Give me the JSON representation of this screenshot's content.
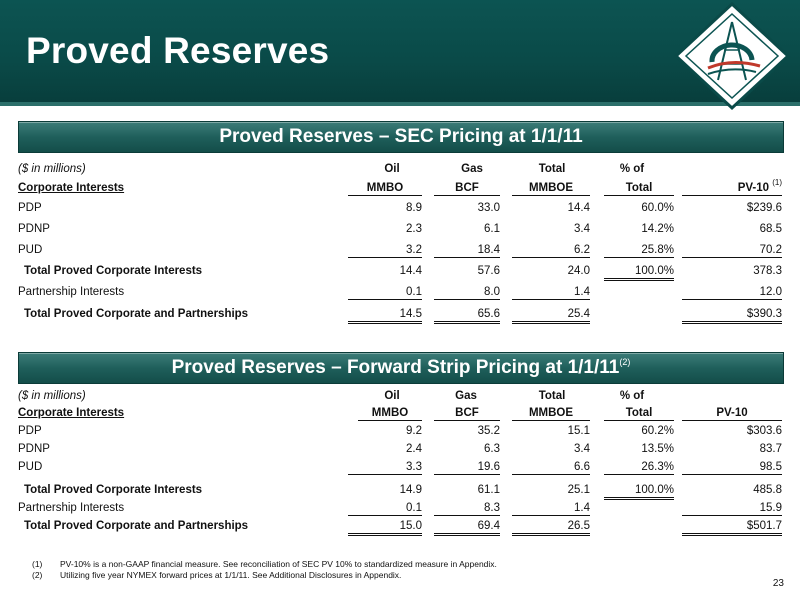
{
  "title": "Proved Reserves",
  "section1": {
    "title": "Proved Reserves – SEC Pricing at 1/1/11",
    "unit_label": "($ in millions)",
    "header_top": [
      "Oil",
      "Gas",
      "Total",
      "% of"
    ],
    "header_label": "Corporate Interests",
    "header_bottom": [
      "MMBO",
      "BCF",
      "MMBOE",
      "Total",
      "PV-10"
    ],
    "pv10_note": "(1)",
    "rows": [
      {
        "label": "PDP",
        "values": [
          "8.9",
          "33.0",
          "14.4",
          "60.0%",
          "$239.6"
        ]
      },
      {
        "label": "PDNP",
        "values": [
          "2.3",
          "6.1",
          "3.4",
          "14.2%",
          "68.5"
        ]
      },
      {
        "label": "PUD",
        "values": [
          "3.2",
          "18.4",
          "6.2",
          "25.8%",
          "70.2"
        ]
      },
      {
        "label": "Total Proved Corporate Interests",
        "values": [
          "14.4",
          "57.6",
          "24.0",
          "100.0%",
          "378.3"
        ]
      },
      {
        "label": "Partnership Interests",
        "values": [
          "0.1",
          "8.0",
          "1.4",
          "",
          "12.0"
        ]
      },
      {
        "label": "Total Proved Corporate and Partnerships",
        "values": [
          "14.5",
          "65.6",
          "25.4",
          "",
          "$390.3"
        ]
      }
    ]
  },
  "section2": {
    "title": "Proved Reserves – Forward Strip Pricing at 1/1/11",
    "title_note": "(2)",
    "unit_label": "($ in millions)",
    "header_top": [
      "Oil",
      "Gas",
      "Total",
      "% of"
    ],
    "header_label": "Corporate Interests",
    "header_bottom": [
      "MMBO",
      "BCF",
      "MMBOE",
      "Total",
      "PV-10"
    ],
    "rows": [
      {
        "label": "PDP",
        "values": [
          "9.2",
          "35.2",
          "15.1",
          "60.2%",
          "$303.6"
        ]
      },
      {
        "label": "PDNP",
        "values": [
          "2.4",
          "6.3",
          "3.4",
          "13.5%",
          "83.7"
        ]
      },
      {
        "label": "PUD",
        "values": [
          "3.3",
          "19.6",
          "6.6",
          "26.3%",
          "98.5"
        ]
      },
      {
        "label": "Total Proved Corporate Interests",
        "values": [
          "14.9",
          "61.1",
          "25.1",
          "100.0%",
          "485.8"
        ]
      },
      {
        "label": "Partnership Interests",
        "values": [
          "0.1",
          "8.3",
          "1.4",
          "",
          "15.9"
        ]
      },
      {
        "label": "Total Proved Corporate and Partnerships",
        "values": [
          "15.0",
          "69.4",
          "26.5",
          "",
          "$501.7"
        ]
      }
    ]
  },
  "footnotes": [
    {
      "num": "(1)",
      "text": "PV-10% is a non-GAAP financial measure.  See  reconciliation of SEC PV 10% to standardized measure in Appendix."
    },
    {
      "num": "(2)",
      "text": "Utilizing five year NYMEX forward prices at 1/1/11.  See Additional Disclosures in Appendix."
    }
  ],
  "page_number": "23"
}
